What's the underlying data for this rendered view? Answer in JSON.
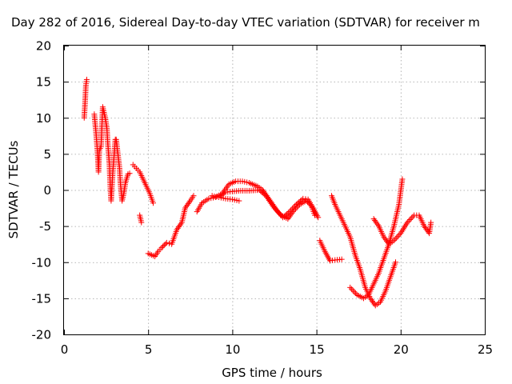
{
  "chart_data": {
    "type": "scatter",
    "title": "Day 282 of 2016, Sidereal Day-to-day VTEC variation (SDTVAR) for receiver m",
    "xlabel": "GPS time / hours",
    "ylabel": "SDTVAR / TECUs",
    "xlim": [
      0,
      25
    ],
    "ylim": [
      -20,
      20
    ],
    "xticks": [
      "0",
      "5",
      "10",
      "15",
      "20",
      "25"
    ],
    "yticks": [
      "-20",
      "-15",
      "-10",
      "-5",
      "0",
      "5",
      "10",
      "15",
      "20"
    ],
    "grid": true,
    "marker": "+",
    "color": "#ff0000",
    "series": [
      {
        "segments": [
          [
            [
              1.2,
              10.0
            ],
            [
              1.25,
              12.0
            ],
            [
              1.3,
              14.5
            ],
            [
              1.35,
              15.3
            ]
          ],
          [
            [
              1.8,
              10.5
            ],
            [
              1.9,
              8.0
            ],
            [
              2.0,
              5.0
            ],
            [
              2.05,
              2.5
            ],
            [
              2.1,
              5.5
            ],
            [
              2.2,
              6.0
            ],
            [
              2.3,
              11.5
            ],
            [
              2.45,
              10.0
            ],
            [
              2.55,
              8.5
            ],
            [
              2.6,
              6.5
            ],
            [
              2.7,
              3.5
            ],
            [
              2.75,
              0.5
            ],
            [
              2.8,
              -1.5
            ],
            [
              2.9,
              2.5
            ],
            [
              3.0,
              5.5
            ],
            [
              3.05,
              7.0
            ],
            [
              3.1,
              7.0
            ],
            [
              3.2,
              5.0
            ],
            [
              3.3,
              3.0
            ],
            [
              3.35,
              1.0
            ],
            [
              3.45,
              -1.5
            ],
            [
              3.55,
              -0.5
            ],
            [
              3.65,
              1.0
            ],
            [
              3.8,
              2.2
            ],
            [
              3.9,
              2.3
            ]
          ],
          [
            [
              4.1,
              3.5
            ],
            [
              4.3,
              3.0
            ],
            [
              4.5,
              2.5
            ],
            [
              4.7,
              1.5
            ],
            [
              4.9,
              0.5
            ],
            [
              5.1,
              -0.5
            ],
            [
              5.3,
              -1.8
            ]
          ],
          [
            [
              4.5,
              -3.5
            ],
            [
              4.55,
              -4.0
            ],
            [
              4.6,
              -4.5
            ]
          ],
          [
            [
              5.0,
              -8.8
            ],
            [
              5.2,
              -9.0
            ],
            [
              5.4,
              -9.2
            ],
            [
              5.6,
              -8.5
            ],
            [
              5.8,
              -8.0
            ],
            [
              6.1,
              -7.3
            ],
            [
              6.4,
              -7.5
            ],
            [
              6.7,
              -5.5
            ],
            [
              7.0,
              -4.5
            ],
            [
              7.2,
              -2.5
            ],
            [
              7.5,
              -1.5
            ],
            [
              7.7,
              -0.8
            ]
          ],
          [
            [
              7.9,
              -3.0
            ],
            [
              8.2,
              -1.8
            ],
            [
              8.6,
              -1.2
            ],
            [
              9.0,
              -1.0
            ],
            [
              9.4,
              -0.5
            ],
            [
              9.8,
              0.8
            ],
            [
              10.2,
              1.2
            ],
            [
              10.6,
              1.2
            ],
            [
              11.0,
              1.0
            ],
            [
              11.5,
              0.5
            ],
            [
              11.8,
              0.0
            ],
            [
              12.1,
              -1.0
            ],
            [
              12.4,
              -2.0
            ],
            [
              12.7,
              -3.0
            ],
            [
              13.0,
              -3.8
            ],
            [
              13.4,
              -3.0
            ],
            [
              13.8,
              -2.0
            ],
            [
              14.2,
              -1.2
            ],
            [
              14.5,
              -1.3
            ],
            [
              14.8,
              -2.5
            ],
            [
              15.1,
              -3.8
            ]
          ],
          [
            [
              8.8,
              -0.8
            ],
            [
              9.2,
              -1.0
            ],
            [
              9.6,
              -1.2
            ],
            [
              10.0,
              -1.3
            ],
            [
              10.4,
              -1.5
            ]
          ],
          [
            [
              9.3,
              -0.8
            ],
            [
              9.6,
              -0.3
            ],
            [
              10.0,
              -0.2
            ],
            [
              10.5,
              -0.1
            ],
            [
              11.0,
              -0.1
            ],
            [
              11.6,
              0.0
            ],
            [
              12.0,
              -0.8
            ],
            [
              12.5,
              -2.5
            ],
            [
              12.9,
              -3.5
            ],
            [
              13.3,
              -4.0
            ],
            [
              13.6,
              -3.0
            ],
            [
              14.0,
              -2.0
            ],
            [
              14.4,
              -1.5
            ],
            [
              14.7,
              -2.2
            ],
            [
              14.9,
              -3.5
            ]
          ],
          [
            [
              15.2,
              -7.0
            ],
            [
              15.5,
              -8.5
            ],
            [
              15.8,
              -9.8
            ],
            [
              16.1,
              -9.7
            ],
            [
              16.5,
              -9.6
            ]
          ],
          [
            [
              15.9,
              -0.8
            ],
            [
              16.1,
              -2.0
            ],
            [
              16.4,
              -3.5
            ],
            [
              16.7,
              -5.0
            ],
            [
              17.0,
              -6.5
            ],
            [
              17.3,
              -9.0
            ],
            [
              17.6,
              -11.0
            ],
            [
              17.9,
              -13.5
            ],
            [
              18.2,
              -15.0
            ],
            [
              18.5,
              -16.0
            ],
            [
              18.8,
              -15.5
            ],
            [
              19.1,
              -14.0
            ],
            [
              19.4,
              -12.0
            ],
            [
              19.7,
              -10.0
            ]
          ],
          [
            [
              17.0,
              -13.5
            ],
            [
              17.4,
              -14.5
            ],
            [
              17.8,
              -15.0
            ],
            [
              18.1,
              -14.5
            ],
            [
              18.4,
              -13.0
            ],
            [
              18.7,
              -11.5
            ],
            [
              19.0,
              -9.5
            ],
            [
              19.3,
              -7.5
            ],
            [
              19.6,
              -5.0
            ],
            [
              19.9,
              -2.0
            ],
            [
              20.1,
              1.5
            ]
          ],
          [
            [
              18.4,
              -4.0
            ],
            [
              18.7,
              -5.0
            ],
            [
              19.0,
              -6.5
            ],
            [
              19.3,
              -7.5
            ],
            [
              19.6,
              -7.0
            ],
            [
              20.0,
              -6.0
            ],
            [
              20.4,
              -4.5
            ],
            [
              20.8,
              -3.5
            ],
            [
              21.1,
              -3.5
            ],
            [
              21.4,
              -5.0
            ],
            [
              21.7,
              -6.0
            ],
            [
              21.8,
              -4.5
            ]
          ]
        ]
      }
    ]
  }
}
